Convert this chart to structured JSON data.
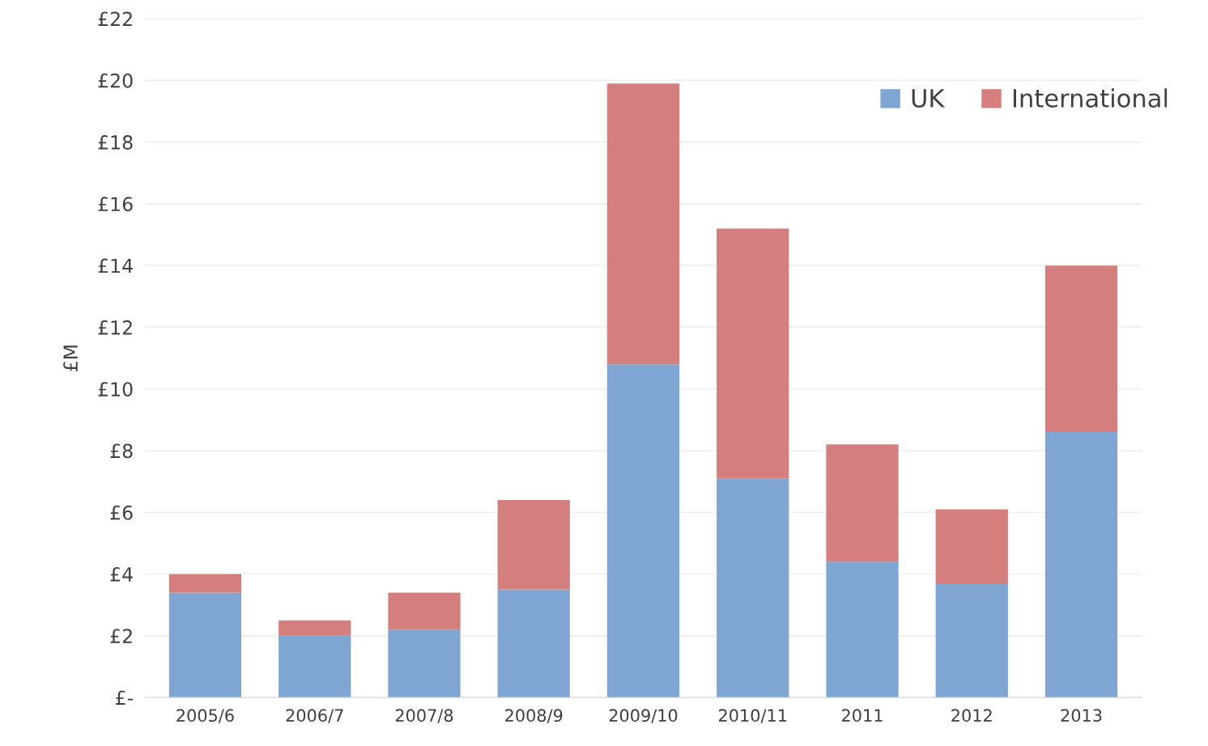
{
  "chart_data": {
    "type": "bar",
    "stacked": true,
    "ylabel": "£M",
    "categories": [
      "2005/6",
      "2006/7",
      "2007/8",
      "2008/9",
      "2009/10",
      "2010/11",
      "2011",
      "2012",
      "2013"
    ],
    "series": [
      {
        "name": "UK",
        "color": "#7fa6d3",
        "values": [
          3.4,
          2.0,
          2.2,
          3.5,
          10.8,
          7.1,
          4.4,
          3.7,
          8.6
        ]
      },
      {
        "name": "International",
        "color": "#d47f7e",
        "values": [
          0.6,
          0.5,
          1.2,
          2.9,
          9.1,
          8.1,
          3.8,
          2.4,
          5.4
        ]
      }
    ],
    "ylim": [
      0,
      22
    ],
    "yticks": [
      {
        "value": 0,
        "label": "£-"
      },
      {
        "value": 2,
        "label": "£2"
      },
      {
        "value": 4,
        "label": "£4"
      },
      {
        "value": 6,
        "label": "£6"
      },
      {
        "value": 8,
        "label": "£8"
      },
      {
        "value": 10,
        "label": "£10"
      },
      {
        "value": 12,
        "label": "£12"
      },
      {
        "value": 14,
        "label": "£14"
      },
      {
        "value": 16,
        "label": "£16"
      },
      {
        "value": 18,
        "label": "£18"
      },
      {
        "value": 20,
        "label": "£20"
      },
      {
        "value": 22,
        "label": "£22"
      }
    ],
    "grid": "y",
    "legend": "top right"
  }
}
